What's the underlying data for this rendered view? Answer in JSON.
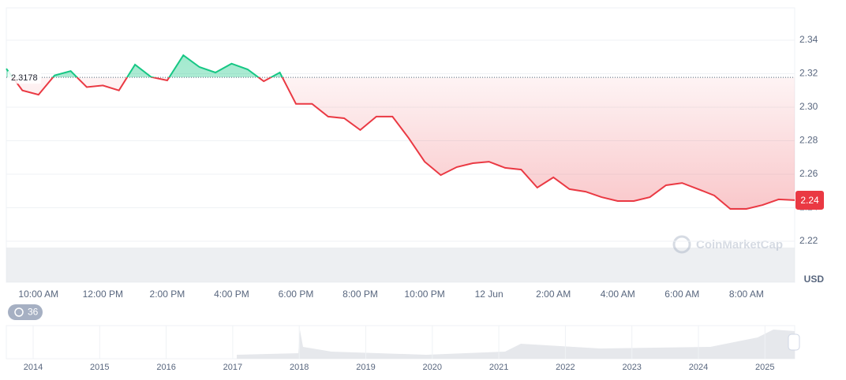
{
  "chart_data": {
    "type": "line",
    "categories": [
      null,
      null,
      "10:00 AM",
      null,
      null,
      null,
      "12:00 PM",
      null,
      null,
      null,
      "2:00 PM",
      null,
      null,
      null,
      "4:00 PM",
      null,
      null,
      null,
      "6:00 PM",
      null,
      null,
      null,
      "8:00 PM",
      null,
      null,
      null,
      "10:00 PM",
      null,
      null,
      null,
      "12 Jun",
      null,
      null,
      null,
      "2:00 AM",
      null,
      null,
      null,
      "4:00 AM",
      null,
      null,
      null,
      "6:00 AM",
      null,
      null,
      null,
      "8:00 AM",
      null,
      null,
      null
    ],
    "values": [
      2.323,
      2.31,
      2.3075,
      2.319,
      2.3216,
      2.312,
      2.313,
      2.31,
      2.3254,
      2.318,
      2.316,
      2.331,
      2.324,
      2.3207,
      2.326,
      2.3226,
      2.3155,
      2.3207,
      2.302,
      2.302,
      2.2944,
      2.2934,
      2.2864,
      2.2944,
      2.2944,
      2.2817,
      2.2675,
      2.2595,
      2.2643,
      2.2666,
      2.2675,
      2.2638,
      2.2628,
      2.252,
      2.2581,
      2.2511,
      2.2496,
      2.2463,
      2.244,
      2.244,
      2.2463,
      2.2534,
      2.2548,
      2.2511,
      2.2473,
      2.2393,
      2.2393,
      2.2416,
      2.245,
      2.2445
    ],
    "ylim": [
      2.2,
      2.36
    ],
    "yticks": [
      2.22,
      2.24,
      2.26,
      2.28,
      {
        "value": 2.3,
        "label": "2.30"
      },
      2.32,
      2.34
    ],
    "grid": true,
    "color_up": "#16c784",
    "color_down": "#ea3943",
    "baseline": {
      "value": 2.3178,
      "label": "2.3178"
    },
    "price_label": "2.24",
    "currency": "USD",
    "watermark": "CoinMarketCap",
    "range_badge": "36",
    "navigator_years": [
      "2014",
      "2015",
      "2016",
      "2017",
      "2018",
      "2019",
      "2020",
      "2021",
      "2022",
      "2023",
      "2024",
      "2025"
    ]
  }
}
